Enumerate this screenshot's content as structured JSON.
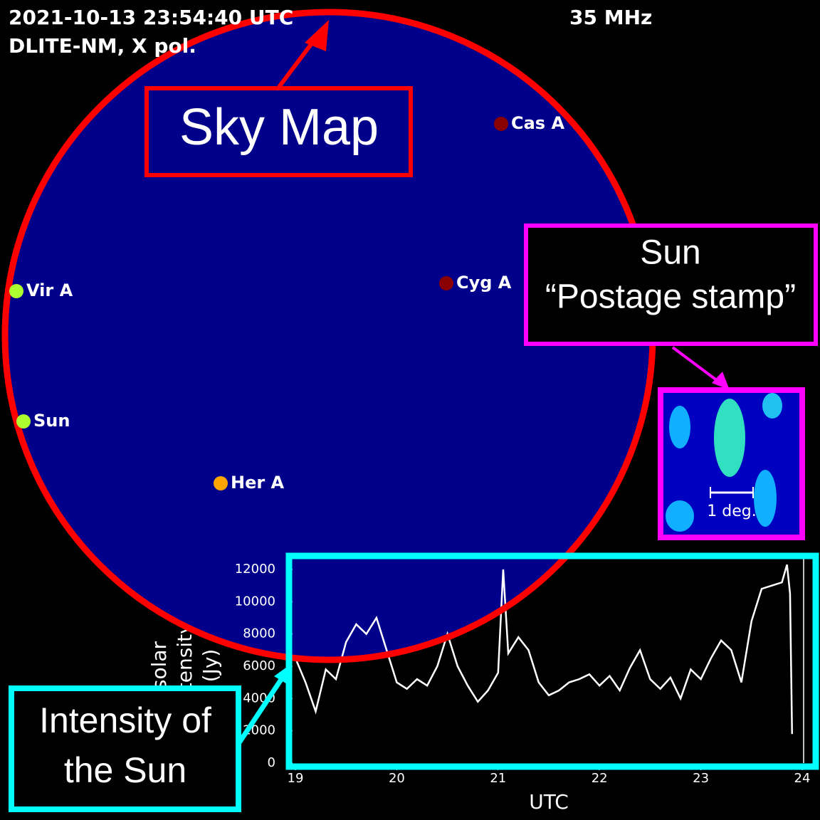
{
  "header": {
    "timestamp": "2021-10-13 23:54:40 UTC",
    "station": "DLITE-NM, X pol.",
    "frequency": "35 MHz"
  },
  "sky_map": {
    "sources": [
      "Cas A",
      "Cyg A",
      "Vir A",
      "Sun",
      "Her A"
    ]
  },
  "postage_stamp": {
    "scale_label": "1 deg."
  },
  "annotations": {
    "sky_map": "Sky Map",
    "postage_stamp": [
      "Sun",
      "“Postage stamp”"
    ],
    "intensity": [
      "Intensity of",
      "the Sun"
    ]
  },
  "chart_data": {
    "type": "line",
    "x_label": "UTC",
    "y_label": [
      "solar",
      "intensity",
      "(Jy)"
    ],
    "x": [
      19.0,
      19.1,
      19.2,
      19.3,
      19.4,
      19.5,
      19.6,
      19.7,
      19.8,
      19.9,
      20.0,
      20.1,
      20.2,
      20.3,
      20.4,
      20.5,
      20.6,
      20.7,
      20.8,
      20.9,
      21.0,
      21.05,
      21.1,
      21.2,
      21.3,
      21.4,
      21.5,
      21.6,
      21.7,
      21.8,
      21.9,
      22.0,
      22.1,
      22.2,
      22.3,
      22.4,
      22.5,
      22.6,
      22.7,
      22.8,
      22.9,
      23.0,
      23.1,
      23.2,
      23.3,
      23.4,
      23.5,
      23.6,
      23.7,
      23.8,
      23.85,
      23.88,
      23.9
    ],
    "series": [
      {
        "color": "#ffffff",
        "values": [
          6500,
          5000,
          3200,
          5800,
          5200,
          7500,
          8600,
          8000,
          9000,
          7000,
          5000,
          4600,
          5200,
          4800,
          6000,
          8000,
          6000,
          4800,
          3800,
          4500,
          5600,
          12000,
          6800,
          7800,
          7000,
          5000,
          4200,
          4500,
          5000,
          5200,
          5500,
          4800,
          5400,
          4500,
          5900,
          7000,
          5200,
          4600,
          5300,
          4000,
          5800,
          5200,
          6500,
          7600,
          7000,
          5000,
          8800,
          10800,
          11000,
          11200,
          12300,
          10500,
          1800
        ]
      }
    ],
    "xlim": [
      19,
      24
    ],
    "xticks": [
      19,
      20,
      21,
      22,
      23,
      24
    ],
    "ylim": [
      0,
      12000
    ],
    "yticks": [
      0,
      2000,
      4000,
      6000,
      8000,
      10000,
      12000
    ]
  }
}
